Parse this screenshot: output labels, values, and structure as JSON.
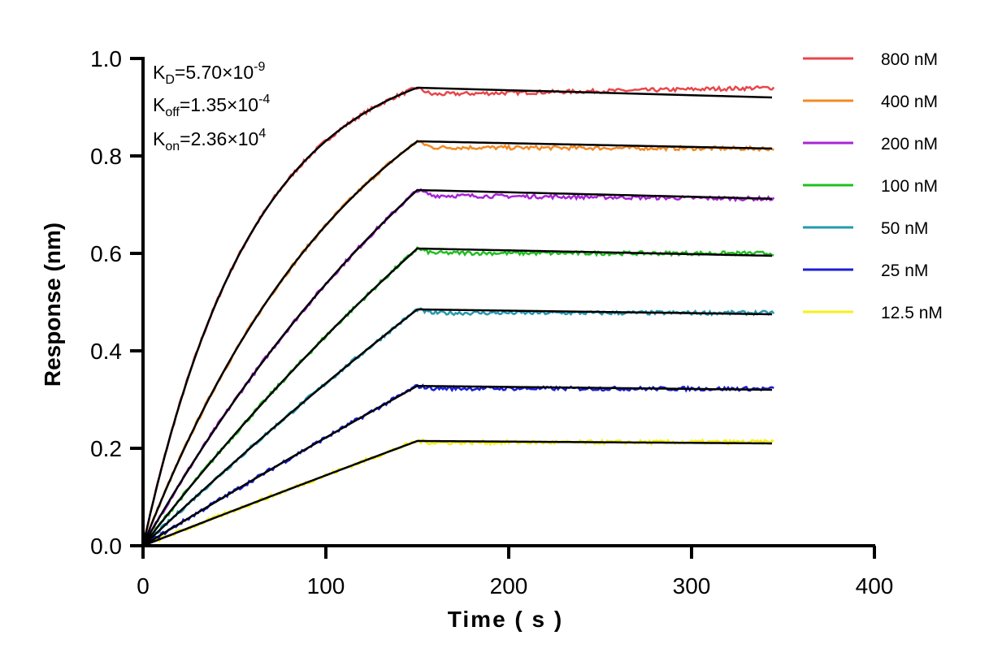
{
  "chart_data": {
    "type": "line",
    "title": "",
    "xlabel": "Time ( s )",
    "ylabel": "Response (nm)",
    "xlim": [
      0,
      400
    ],
    "ylim": [
      0,
      1.0
    ],
    "x_ticks": [
      "0",
      "100",
      "200",
      "300",
      "400"
    ],
    "y_ticks": [
      "0.0",
      "0.2",
      "0.4",
      "0.6",
      "0.8",
      "1.0"
    ],
    "grid": false,
    "legend_position": "right",
    "association_end_s": 150,
    "dissociation_end_s": 345,
    "kinetics": {
      "kd": {
        "symbol": "K",
        "subscript": "D",
        "mantissa": "=5.70×10",
        "exponent": "-9"
      },
      "koff": {
        "symbol": "K",
        "subscript": "off",
        "mantissa": "=1.35×10",
        "exponent": "-4"
      },
      "kon": {
        "symbol": "K",
        "subscript": "on",
        "mantissa": "=2.36×10",
        "exponent": "4"
      }
    },
    "fit_color": "#000000",
    "series": [
      {
        "name": "800 nM",
        "color": "#e8474a",
        "peak": 0.94,
        "end_fit": 0.92,
        "end_data": 0.94,
        "tau": 60
      },
      {
        "name": "400 nM",
        "color": "#f28a25",
        "peak": 0.83,
        "end_fit": 0.815,
        "end_data": 0.815,
        "tau": 120
      },
      {
        "name": "200 nM",
        "color": "#a825d6",
        "peak": 0.73,
        "end_fit": 0.712,
        "end_data": 0.712,
        "tau": 230
      },
      {
        "name": "100 nM",
        "color": "#1fbf1f",
        "peak": 0.61,
        "end_fit": 0.595,
        "end_data": 0.6,
        "tau": 420
      },
      {
        "name": "50 nM",
        "color": "#2599b0",
        "peak": 0.485,
        "end_fit": 0.475,
        "end_data": 0.478,
        "tau": 800
      },
      {
        "name": "25 nM",
        "color": "#1a1fd6",
        "peak": 0.328,
        "end_fit": 0.32,
        "end_data": 0.322,
        "tau": 1600
      },
      {
        "name": "12.5 nM",
        "color": "#f5f01a",
        "peak": 0.215,
        "end_fit": 0.21,
        "end_data": 0.213,
        "tau": 3000
      }
    ]
  }
}
